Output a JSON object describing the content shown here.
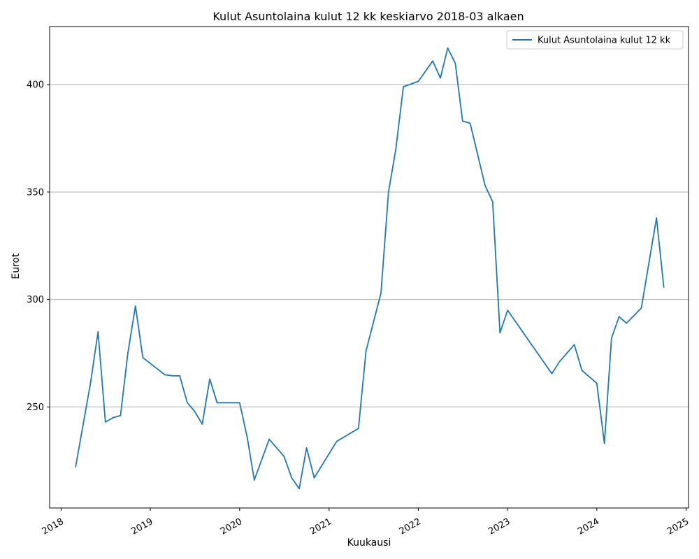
{
  "chart_data": {
    "type": "line",
    "title": "Kulut Asuntolaina kulut 12 kk keskiarvo 2018-03 alkaen",
    "xlabel": "Kuukausi",
    "ylabel": "Eurot",
    "xlim": [
      "2017-11-15",
      "2025-01-10"
    ],
    "ylim": [
      203,
      427
    ],
    "x_ticks": [
      "2018",
      "2019",
      "2020",
      "2021",
      "2022",
      "2023",
      "2024",
      "2025"
    ],
    "y_ticks": [
      250,
      300,
      350,
      400
    ],
    "grid": "y",
    "legend_position": "top-right",
    "series": [
      {
        "name": "Kulut Asuntolaina kulut 12 kk",
        "color": "#1f77b4",
        "x": [
          "2018-03",
          "2018-05",
          "2018-06",
          "2018-07",
          "2018-08",
          "2018-09",
          "2018-10",
          "2018-11",
          "2018-12",
          "2019-03",
          "2019-04",
          "2019-05",
          "2019-06",
          "2019-07",
          "2019-08",
          "2019-09",
          "2019-10",
          "2020-01",
          "2020-02",
          "2020-03",
          "2020-05",
          "2020-07",
          "2020-08",
          "2020-09",
          "2020-10",
          "2020-11",
          "2021-02",
          "2021-05",
          "2021-06",
          "2021-08",
          "2021-09",
          "2021-10",
          "2021-11",
          "2022-01",
          "2022-03",
          "2022-04",
          "2022-05",
          "2022-06",
          "2022-07",
          "2022-08",
          "2022-10",
          "2022-11",
          "2022-12",
          "2023-01",
          "2023-07",
          "2023-08",
          "2023-10",
          "2023-11",
          "2024-01",
          "2024-02",
          "2024-03",
          "2024-04",
          "2024-05",
          "2024-07",
          "2024-09",
          "2024-10"
        ],
        "y": [
          222,
          261,
          285,
          243,
          245,
          246,
          275,
          297,
          273,
          265,
          264.5,
          264.5,
          252,
          248,
          242,
          263,
          252,
          252,
          236,
          216,
          235,
          227,
          217,
          212,
          231,
          217,
          234,
          240,
          276,
          303,
          350,
          370,
          399,
          401.5,
          411,
          403,
          417,
          410,
          383,
          382,
          353,
          345.5,
          284.5,
          295,
          265.5,
          271,
          279,
          267,
          261,
          233,
          282,
          292,
          289,
          296,
          338,
          305.5
        ]
      }
    ]
  }
}
